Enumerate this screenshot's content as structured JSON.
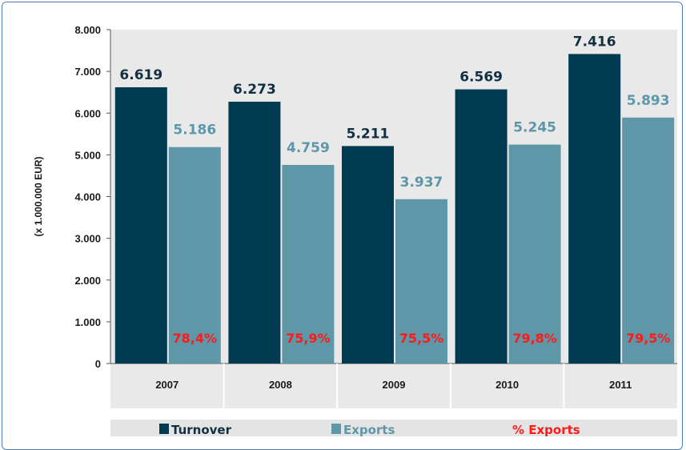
{
  "chart_data": {
    "type": "bar",
    "title": "",
    "ylabel": "(x 1.000.000 EUR)",
    "xlabel": "",
    "ylim": [
      0,
      8000
    ],
    "yticks": [
      "0",
      "1.000",
      "2.000",
      "3.000",
      "4.000",
      "5.000",
      "6.000",
      "7.000",
      "8.000"
    ],
    "grid": false,
    "legend_position": "bottom",
    "categories": [
      "2007",
      "2008",
      "2009",
      "2010",
      "2011"
    ],
    "series": [
      {
        "name": "Turnover",
        "color": "#003b52",
        "label_color": "#12303f",
        "values": [
          6619,
          6273,
          5211,
          6569,
          7416
        ],
        "labels": [
          "6.619",
          "6.273",
          "5.211",
          "6.569",
          "7.416"
        ]
      },
      {
        "name": "Exports",
        "color": "#5e97a8",
        "label_color": "#5e97a8",
        "values": [
          5186,
          4759,
          3937,
          5245,
          5893
        ],
        "labels": [
          "5.186",
          "4.759",
          "3.937",
          "5.245",
          "5.893"
        ]
      }
    ],
    "percent_series": {
      "name": "% Exports",
      "color": "#ff1a1a",
      "values": [
        78.4,
        75.9,
        75.5,
        79.8,
        79.5
      ],
      "labels": [
        "78,4%",
        "75,9%",
        "75,5%",
        "79,8%",
        "79,5%"
      ]
    },
    "plot_background": "#e9e9e9",
    "legend_background": "#e4e4e4"
  }
}
